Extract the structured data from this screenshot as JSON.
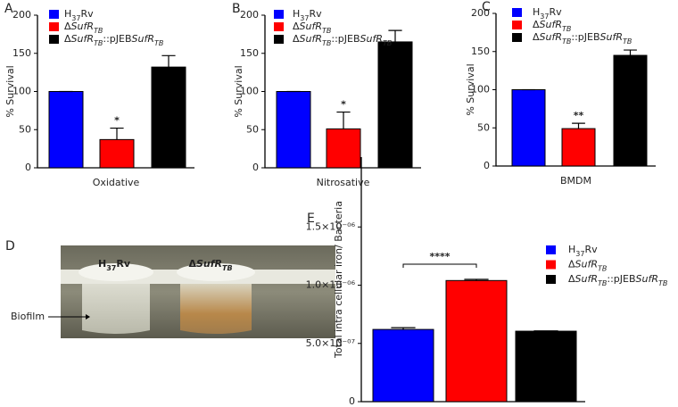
{
  "chart_data": [
    {
      "type": "bar",
      "label": "A",
      "ylabel": "% Survival",
      "xlabel": "Oxidative",
      "ylim": [
        0,
        200
      ],
      "yticks": [
        0,
        50,
        100,
        150,
        200
      ],
      "series": [
        {
          "name": "H37Rv",
          "color": "#0000ff",
          "values": [
            100
          ],
          "errors": [
            0
          ]
        },
        {
          "name": "ΔSufRTB",
          "color": "#ff0000",
          "values": [
            37
          ],
          "errors": [
            15
          ],
          "significance": "*"
        },
        {
          "name": "ΔSufRTB::pJEBSufRTB",
          "color": "#000000",
          "values": [
            132
          ],
          "errors": [
            15
          ]
        }
      ]
    },
    {
      "type": "bar",
      "label": "B",
      "ylabel": "% Survival",
      "xlabel": "Nitrosative",
      "ylim": [
        0,
        200
      ],
      "yticks": [
        0,
        50,
        100,
        150,
        200
      ],
      "series": [
        {
          "name": "H37Rv",
          "color": "#0000ff",
          "values": [
            100
          ],
          "errors": [
            0
          ]
        },
        {
          "name": "ΔSufRTB",
          "color": "#ff0000",
          "values": [
            51
          ],
          "errors": [
            22
          ],
          "significance": "*"
        },
        {
          "name": "ΔSufRTB::pJEBSufRTB",
          "color": "#000000",
          "values": [
            165
          ],
          "errors": [
            15
          ]
        }
      ]
    },
    {
      "type": "bar",
      "label": "C",
      "ylabel": "% Survival",
      "xlabel": "BMDM",
      "ylim": [
        0,
        200
      ],
      "yticks": [
        0,
        50,
        100,
        150,
        200
      ],
      "series": [
        {
          "name": "H37Rv",
          "color": "#0000ff",
          "values": [
            100
          ],
          "errors": [
            0
          ]
        },
        {
          "name": "ΔSufRTB",
          "color": "#ff0000",
          "values": [
            49
          ],
          "errors": [
            7
          ],
          "significance": "**"
        },
        {
          "name": "ΔSufRTB::pJEBSufRTB",
          "color": "#000000",
          "values": [
            145
          ],
          "errors": [
            7
          ]
        }
      ]
    },
    {
      "type": "bar",
      "label": "E",
      "ylabel": "Total intra cellular iron/ Bacteria",
      "ylim": [
        0,
        2.1e-06
      ],
      "yticks": [
        0,
        {
          "value": 5e-07,
          "label": "5.0×10⁻⁰⁷"
        },
        {
          "value": 1e-06,
          "label": "1.0×10⁻⁰⁶"
        },
        {
          "value": 1.5e-06,
          "label": "1.5×10⁻⁰⁶"
        }
      ],
      "significance": "****",
      "series": [
        {
          "name": "H37Rv",
          "color": "#0000ff",
          "values": [
            6.2e-07
          ],
          "errors": [
            1.5e-08
          ]
        },
        {
          "name": "ΔSufRTB",
          "color": "#ff0000",
          "values": [
            1.04e-06
          ],
          "errors": [
            1e-08
          ]
        },
        {
          "name": "ΔSufRTB::pJEBSufRTB",
          "color": "#000000",
          "values": [
            6.05e-07
          ],
          "errors": [
            3e-09
          ]
        }
      ]
    }
  ],
  "photo": {
    "label": "D",
    "columns": [
      "H37Rv",
      "ΔSufRTB"
    ],
    "annotation": "Biofilm"
  }
}
